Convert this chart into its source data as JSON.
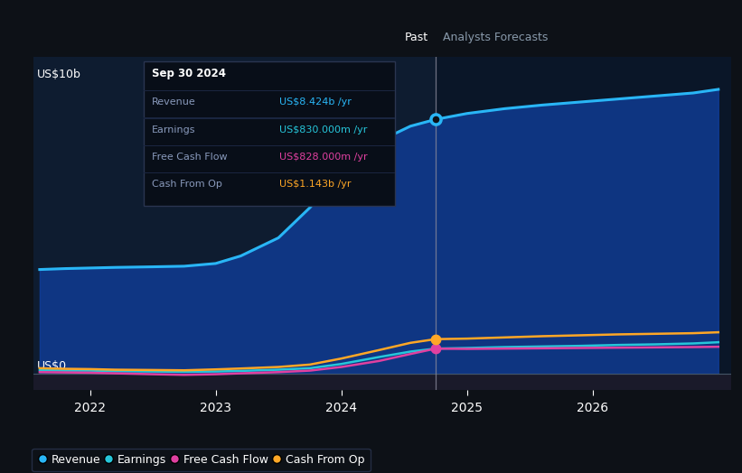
{
  "bg_color": "#0d1117",
  "past_bg_color": "#0e1c30",
  "forecast_bg_color": "#0a1628",
  "bottom_strip_color": "#1a1a2a",
  "divider_x": 2024.75,
  "ylabel_text": "US$10b",
  "ylabel0_text": "US$0",
  "past_label": "Past",
  "forecast_label": "Analysts Forecasts",
  "x_ticks": [
    2022,
    2023,
    2024,
    2025,
    2026
  ],
  "revenue_color": "#29b6f6",
  "earnings_color": "#26c6da",
  "fcf_color": "#e040a0",
  "cashop_color": "#ffa726",
  "revenue_fill_color": "#1040a0",
  "legend_items": [
    "Revenue",
    "Earnings",
    "Free Cash Flow",
    "Cash From Op"
  ],
  "tooltip": {
    "title": "Sep 30 2024",
    "rows": [
      [
        "Revenue",
        "US$8.424b /yr",
        "#29b6f6"
      ],
      [
        "Earnings",
        "US$830.000m /yr",
        "#26c6da"
      ],
      [
        "Free Cash Flow",
        "US$828.000m /yr",
        "#e040a0"
      ],
      [
        "Cash From Op",
        "US$1.143b /yr",
        "#ffa726"
      ]
    ]
  },
  "revenue_x": [
    2021.6,
    2021.8,
    2022.0,
    2022.2,
    2022.5,
    2022.75,
    2023.0,
    2023.2,
    2023.5,
    2023.75,
    2024.0,
    2024.3,
    2024.55,
    2024.75,
    2025.0,
    2025.3,
    2025.6,
    2025.9,
    2026.2,
    2026.5,
    2026.8,
    2027.0
  ],
  "revenue_y": [
    3.45,
    3.48,
    3.5,
    3.52,
    3.54,
    3.56,
    3.65,
    3.9,
    4.5,
    5.5,
    6.7,
    7.7,
    8.2,
    8.424,
    8.62,
    8.78,
    8.9,
    9.0,
    9.1,
    9.2,
    9.3,
    9.42
  ],
  "earnings_x": [
    2021.6,
    2021.8,
    2022.0,
    2022.2,
    2022.5,
    2022.75,
    2023.0,
    2023.2,
    2023.5,
    2023.75,
    2024.0,
    2024.3,
    2024.55,
    2024.75,
    2025.0,
    2025.3,
    2025.6,
    2025.9,
    2026.2,
    2026.5,
    2026.8,
    2027.0
  ],
  "earnings_y": [
    0.12,
    0.1,
    0.1,
    0.08,
    0.07,
    0.06,
    0.07,
    0.09,
    0.13,
    0.18,
    0.32,
    0.55,
    0.73,
    0.83,
    0.85,
    0.88,
    0.9,
    0.92,
    0.95,
    0.97,
    1.0,
    1.04
  ],
  "fcf_x": [
    2021.6,
    2021.8,
    2022.0,
    2022.2,
    2022.5,
    2022.75,
    2023.0,
    2023.2,
    2023.5,
    2023.75,
    2024.0,
    2024.3,
    2024.55,
    2024.75,
    2025.0,
    2025.3,
    2025.6,
    2025.9,
    2026.2,
    2026.5,
    2026.8,
    2027.0
  ],
  "fcf_y": [
    0.05,
    0.04,
    0.03,
    0.01,
    -0.02,
    -0.04,
    -0.02,
    0.01,
    0.05,
    0.1,
    0.22,
    0.42,
    0.65,
    0.828,
    0.82,
    0.83,
    0.84,
    0.85,
    0.86,
    0.87,
    0.88,
    0.89
  ],
  "cashop_x": [
    2021.6,
    2021.8,
    2022.0,
    2022.2,
    2022.5,
    2022.75,
    2023.0,
    2023.2,
    2023.5,
    2023.75,
    2024.0,
    2024.3,
    2024.55,
    2024.75,
    2025.0,
    2025.3,
    2025.6,
    2025.9,
    2026.2,
    2026.5,
    2026.8,
    2027.0
  ],
  "cashop_y": [
    0.18,
    0.16,
    0.15,
    0.13,
    0.12,
    0.11,
    0.14,
    0.17,
    0.22,
    0.3,
    0.5,
    0.78,
    1.02,
    1.143,
    1.16,
    1.2,
    1.24,
    1.27,
    1.3,
    1.32,
    1.34,
    1.37
  ],
  "xlim": [
    2021.55,
    2027.1
  ],
  "ylim": [
    -0.55,
    10.5
  ]
}
